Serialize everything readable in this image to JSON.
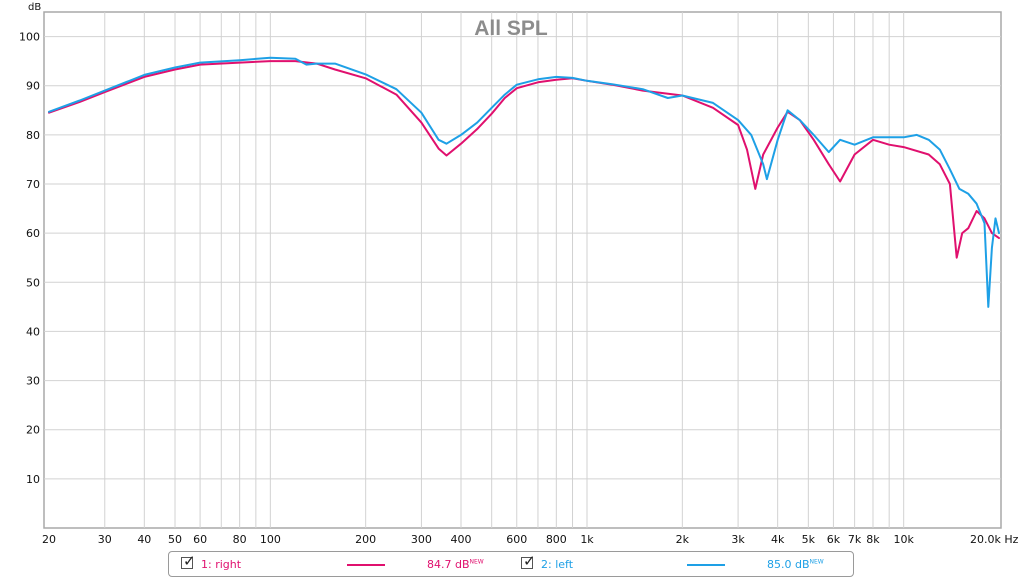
{
  "chart_data": {
    "type": "line",
    "title": "All SPL",
    "ylabel": "dB",
    "xlabel": "Hz",
    "xscale": "log",
    "xlim": [
      20,
      20000
    ],
    "ylim": [
      0,
      105
    ],
    "y_ticks": [
      10,
      20,
      30,
      40,
      50,
      60,
      70,
      80,
      90,
      100
    ],
    "x_ticks": [
      {
        "value": 20,
        "label": "20"
      },
      {
        "value": 30,
        "label": "30"
      },
      {
        "value": 40,
        "label": "40"
      },
      {
        "value": 50,
        "label": "50"
      },
      {
        "value": 60,
        "label": "60"
      },
      {
        "value": 80,
        "label": "80"
      },
      {
        "value": 100,
        "label": "100"
      },
      {
        "value": 200,
        "label": "200"
      },
      {
        "value": 300,
        "label": "300"
      },
      {
        "value": 400,
        "label": "400"
      },
      {
        "value": 600,
        "label": "600"
      },
      {
        "value": 800,
        "label": "800"
      },
      {
        "value": 1000,
        "label": "1k"
      },
      {
        "value": 2000,
        "label": "2k"
      },
      {
        "value": 3000,
        "label": "3k"
      },
      {
        "value": 4000,
        "label": "4k"
      },
      {
        "value": 5000,
        "label": "5k"
      },
      {
        "value": 6000,
        "label": "6k"
      },
      {
        "value": 7000,
        "label": "7k"
      },
      {
        "value": 8000,
        "label": "8k"
      },
      {
        "value": 10000,
        "label": "10k"
      },
      {
        "value": 20000,
        "label": "20.0k Hz"
      }
    ],
    "minor_grid_x": [
      70,
      90,
      500,
      700,
      900,
      9000
    ],
    "grid": true,
    "series": [
      {
        "name": "1: right",
        "color": "#e0106e",
        "value_label": "84.7 dB",
        "value_sup": "NEW",
        "points": [
          [
            20,
            84.5
          ],
          [
            25,
            86.7
          ],
          [
            30,
            88.7
          ],
          [
            40,
            91.8
          ],
          [
            50,
            93.3
          ],
          [
            60,
            94.3
          ],
          [
            80,
            94.7
          ],
          [
            100,
            95.0
          ],
          [
            120,
            95.0
          ],
          [
            140,
            94.5
          ],
          [
            160,
            93.3
          ],
          [
            200,
            91.5
          ],
          [
            250,
            88.2
          ],
          [
            300,
            82.5
          ],
          [
            340,
            77.2
          ],
          [
            360,
            75.8
          ],
          [
            400,
            78.2
          ],
          [
            450,
            81.2
          ],
          [
            500,
            84.3
          ],
          [
            550,
            87.5
          ],
          [
            600,
            89.5
          ],
          [
            700,
            90.7
          ],
          [
            800,
            91.2
          ],
          [
            900,
            91.5
          ],
          [
            1000,
            91.0
          ],
          [
            1200,
            90.2
          ],
          [
            1500,
            89.0
          ],
          [
            2000,
            88.0
          ],
          [
            2500,
            85.5
          ],
          [
            3000,
            82.0
          ],
          [
            3200,
            77.0
          ],
          [
            3400,
            69.0
          ],
          [
            3600,
            76.0
          ],
          [
            4000,
            81.5
          ],
          [
            4300,
            84.7
          ],
          [
            4700,
            83.0
          ],
          [
            5200,
            79.0
          ],
          [
            5800,
            74.0
          ],
          [
            6300,
            70.5
          ],
          [
            7000,
            76.0
          ],
          [
            8000,
            79.0
          ],
          [
            9000,
            78.0
          ],
          [
            10000,
            77.5
          ],
          [
            12000,
            76.0
          ],
          [
            13000,
            74.0
          ],
          [
            14000,
            70.0
          ],
          [
            14700,
            55.0
          ],
          [
            15300,
            60.0
          ],
          [
            16000,
            61.0
          ],
          [
            17000,
            64.5
          ],
          [
            18000,
            63.0
          ],
          [
            19000,
            60.0
          ],
          [
            20000,
            59.0
          ]
        ]
      },
      {
        "name": "2: left",
        "color": "#1ea0e6",
        "value_label": "85.0 dB",
        "value_sup": "NEW",
        "points": [
          [
            20,
            84.7
          ],
          [
            25,
            87.0
          ],
          [
            30,
            89.0
          ],
          [
            40,
            92.2
          ],
          [
            50,
            93.7
          ],
          [
            60,
            94.7
          ],
          [
            80,
            95.2
          ],
          [
            100,
            95.7
          ],
          [
            120,
            95.5
          ],
          [
            130,
            94.3
          ],
          [
            140,
            94.5
          ],
          [
            160,
            94.5
          ],
          [
            200,
            92.3
          ],
          [
            250,
            89.3
          ],
          [
            300,
            84.5
          ],
          [
            340,
            79.0
          ],
          [
            360,
            78.2
          ],
          [
            400,
            80.0
          ],
          [
            450,
            82.5
          ],
          [
            500,
            85.5
          ],
          [
            550,
            88.2
          ],
          [
            600,
            90.2
          ],
          [
            700,
            91.3
          ],
          [
            800,
            91.8
          ],
          [
            900,
            91.6
          ],
          [
            1000,
            91.0
          ],
          [
            1200,
            90.3
          ],
          [
            1500,
            89.3
          ],
          [
            1800,
            87.5
          ],
          [
            2000,
            88.0
          ],
          [
            2500,
            86.5
          ],
          [
            3000,
            83.0
          ],
          [
            3300,
            80.0
          ],
          [
            3600,
            74.0
          ],
          [
            3700,
            71.0
          ],
          [
            4000,
            79.0
          ],
          [
            4300,
            85.0
          ],
          [
            4700,
            83.0
          ],
          [
            5200,
            80.0
          ],
          [
            5800,
            76.5
          ],
          [
            6300,
            79.0
          ],
          [
            7000,
            78.0
          ],
          [
            8000,
            79.5
          ],
          [
            9000,
            79.5
          ],
          [
            10000,
            79.5
          ],
          [
            11000,
            80.0
          ],
          [
            12000,
            79.0
          ],
          [
            13000,
            77.0
          ],
          [
            14000,
            73.0
          ],
          [
            15000,
            69.0
          ],
          [
            16000,
            68.0
          ],
          [
            17000,
            66.0
          ],
          [
            18000,
            62.0
          ],
          [
            18500,
            45.0
          ],
          [
            19000,
            57.0
          ],
          [
            19500,
            63.0
          ],
          [
            20000,
            60.0
          ]
        ]
      }
    ]
  }
}
